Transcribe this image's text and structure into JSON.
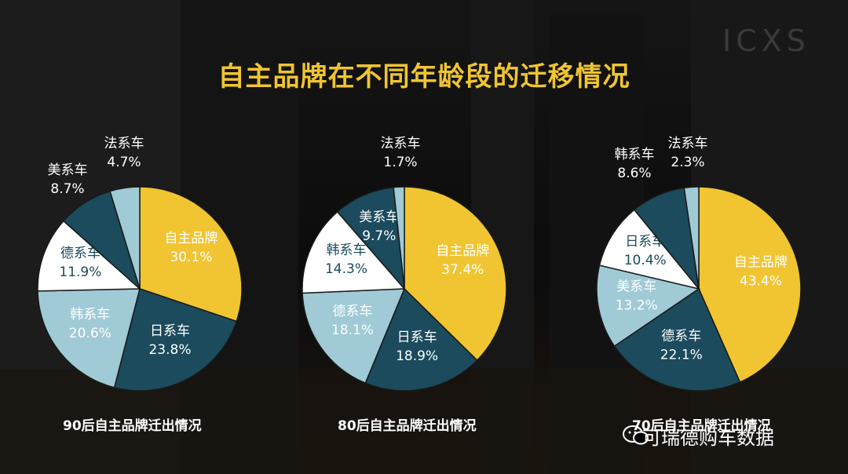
{
  "title": "自主品牌在不同年龄段的迁移情况",
  "brand_mark": "ICXS",
  "watermark": "可瑞德购车数据",
  "colors": {
    "accent_yellow": "#f0c531",
    "dark_teal": "#1b4b5c",
    "light_blue": "#9fcad6",
    "white": "#ffffff",
    "title": "#f0c531"
  },
  "chart_data": [
    {
      "type": "pie",
      "caption": "90后自主品牌迁出情况",
      "slices": [
        {
          "label": "自主品牌",
          "value": 30.1,
          "display": "30.1%",
          "color": "#f0c531",
          "label_style": "inside-light"
        },
        {
          "label": "日系车",
          "value": 23.8,
          "display": "23.8%",
          "color": "#1b4b5c",
          "label_style": "inside-light"
        },
        {
          "label": "韩系车",
          "value": 20.6,
          "display": "20.6%",
          "color": "#9fcad6",
          "label_style": "inside-light"
        },
        {
          "label": "德系车",
          "value": 11.9,
          "display": "11.9%",
          "color": "#ffffff",
          "label_style": "inside-dark"
        },
        {
          "label": "美系车",
          "value": 8.7,
          "display": "8.7%",
          "color": "#1b4b5c",
          "label_style": "outside"
        },
        {
          "label": "法系车",
          "value": 4.7,
          "display": "4.7%",
          "color": "#9fcad6",
          "label_style": "outside"
        }
      ]
    },
    {
      "type": "pie",
      "caption": "80后自主品牌迁出情况",
      "slices": [
        {
          "label": "自主品牌",
          "value": 37.4,
          "display": "37.4%",
          "color": "#f0c531",
          "label_style": "inside-light"
        },
        {
          "label": "日系车",
          "value": 18.9,
          "display": "18.9%",
          "color": "#1b4b5c",
          "label_style": "inside-light"
        },
        {
          "label": "德系车",
          "value": 18.1,
          "display": "18.1%",
          "color": "#9fcad6",
          "label_style": "inside-light"
        },
        {
          "label": "韩系车",
          "value": 14.3,
          "display": "14.3%",
          "color": "#ffffff",
          "label_style": "inside-dark"
        },
        {
          "label": "美系车",
          "value": 9.7,
          "display": "9.7%",
          "color": "#1b4b5c",
          "label_style": "inside-light"
        },
        {
          "label": "法系车",
          "value": 1.7,
          "display": "1.7%",
          "color": "#9fcad6",
          "label_style": "outside"
        }
      ]
    },
    {
      "type": "pie",
      "caption": "70后自主品牌迁出情况",
      "slices": [
        {
          "label": "自主品牌",
          "value": 43.4,
          "display": "43.4%",
          "color": "#f0c531",
          "label_style": "inside-light"
        },
        {
          "label": "德系车",
          "value": 22.1,
          "display": "22.1%",
          "color": "#1b4b5c",
          "label_style": "inside-light"
        },
        {
          "label": "美系车",
          "value": 13.2,
          "display": "13.2%",
          "color": "#9fcad6",
          "label_style": "inside-light"
        },
        {
          "label": "日系车",
          "value": 10.4,
          "display": "10.4%",
          "color": "#ffffff",
          "label_style": "inside-dark"
        },
        {
          "label": "韩系车",
          "value": 8.6,
          "display": "8.6%",
          "color": "#1b4b5c",
          "label_style": "outside"
        },
        {
          "label": "法系车",
          "value": 2.3,
          "display": "2.3%",
          "color": "#9fcad6",
          "label_style": "outside"
        }
      ]
    }
  ]
}
